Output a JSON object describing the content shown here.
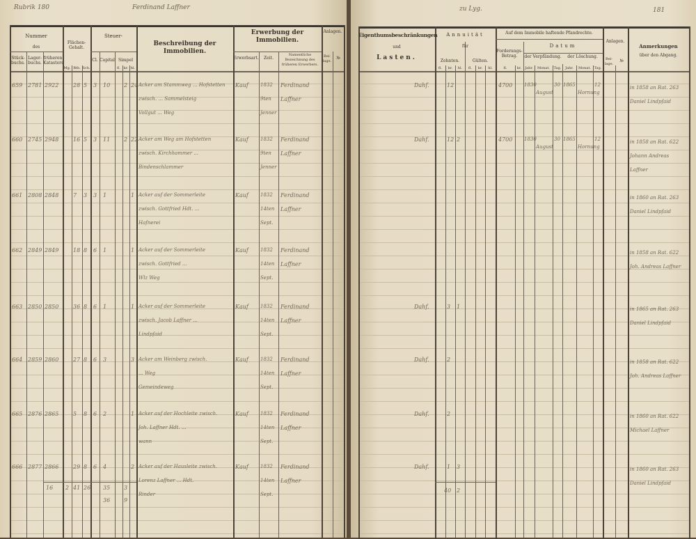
{
  "running_head": {
    "left_folio": "Rubrik 180",
    "left_name": "Ferdinand Laffner",
    "right_place": "zu Lyg.",
    "right_folio": "181"
  },
  "left_headers": {
    "nummer": "Nummer",
    "des": "des",
    "stueck": "Stück-buchs.",
    "lager": "Lager-buchs.",
    "frueher": "früheren Katasters",
    "flaechen": "Flächen-Gehalt.",
    "flaechen_sub": [
      "Mg.",
      "Rth.",
      "Sch."
    ],
    "steuer": "Steuer-",
    "cl": "Cl.",
    "capital": "Capital",
    "simpel": "Simpel",
    "simpel_sub": [
      "fl.",
      "kr.",
      "hl."
    ],
    "beschreibung": "Beschreibung der Immobilien.",
    "erwerbung": "Erwerbung der Immobilien.",
    "erwerbsart": "Erwerbsart.",
    "zeit": "Zeit.",
    "name": "Namentliche Bezeichnung des früheren Erwerbers.",
    "anlagen": "Anlagen.",
    "beilage": "Bei-lage.",
    "nr": "№"
  },
  "right_headers": {
    "eigenthum": "Eigenthumsbeschränkungen",
    "und": "und",
    "lasten": "Lasten.",
    "annuitaet": "Annuität",
    "fuer": "für",
    "zehnten": "Zehnten.",
    "guelten": "Gülten.",
    "sub": [
      "fl.",
      "kr.",
      "hl."
    ],
    "pfand": "Auf dem Immobile haftende Pfandrechte.",
    "forderung": "Forderungs-Betrag.",
    "ford_sub": [
      "fl.",
      "kr."
    ],
    "datum": "Datum",
    "verpf": "der Verpfändung.",
    "loesch": "der Löschung.",
    "dsub": [
      "Jahr.",
      "Monat.",
      "Tag."
    ],
    "anlagen": "Anlagen.",
    "beilage": "Bei-lage.",
    "nr": "№",
    "anmerkungen": "Anmerkungen",
    "abgang": "über den Abgang."
  },
  "rows": [
    {
      "nr": "659",
      "stueck": "2781",
      "lager": "2922",
      "fl": [
        "",
        "28",
        "5"
      ],
      "cl": "3",
      "cap": "10",
      "simp": [
        "",
        "2",
        "24"
      ],
      "desc": [
        "Acker am Stammweg ... Hofstetten",
        "zwisch. ... Sammelsteig",
        "Vollgut ... Weg"
      ],
      "art": "Kauf",
      "zeit": [
        "1832",
        "9ten",
        "Jenner"
      ],
      "name": [
        "Ferdinand",
        "Laffner"
      ],
      "last": "Dahf.",
      "zeh": [
        "",
        "12",
        ""
      ],
      "ford": "4700",
      "vj": "1830",
      "vm": "August",
      "vt": "30",
      "lj": "1865",
      "lm": "Hornung",
      "lt": "12",
      "anm": [
        "in 1858 an Rat. 263",
        "Daniel Lindpfaid"
      ]
    },
    {
      "nr": "660",
      "stueck": "2745",
      "lager": "2948",
      "fl": [
        "",
        "16",
        "5"
      ],
      "cl": "3",
      "cap": "11",
      "simp": [
        "",
        "2",
        "22"
      ],
      "desc": [
        "Acker am Weg am Hofstetten",
        "zwisch. Kirchhammer ...",
        "Bindenschlammer"
      ],
      "art": "Kauf",
      "zeit": [
        "1832",
        "9ten",
        "Jenner"
      ],
      "name": [
        "Ferdinand",
        "Laffner"
      ],
      "last": "Dahf.",
      "zeh": [
        "",
        "12",
        "2"
      ],
      "ford": "4700",
      "vj": "1830",
      "vm": "August",
      "vt": "30",
      "lj": "1865",
      "lm": "Hornung",
      "lt": "12",
      "anm": [
        "in 1858 an Rat. 622",
        "Johann Andreas",
        "Laffner"
      ]
    },
    {
      "nr": "661",
      "stueck": "2808",
      "lager": "2848",
      "fl": [
        "",
        "7",
        "3"
      ],
      "cl": "3",
      "cap": "1",
      "simp": [
        "",
        "",
        "1"
      ],
      "desc": [
        "Acker auf der Sommerleite",
        "zwisch. Gottfried Hdt. ...",
        "Hafnerei"
      ],
      "art": "Kauf",
      "zeit": [
        "1832",
        "14ten",
        "Sept."
      ],
      "name": [
        "Ferdinand",
        "Laffner"
      ],
      "last": "",
      "zeh": [
        "",
        "",
        ""
      ],
      "ford": "",
      "vj": "",
      "vm": "",
      "vt": "",
      "lj": "",
      "lm": "",
      "lt": "",
      "anm": [
        "in 1860 an Rat. 263",
        "Daniel Lindpfaid"
      ]
    },
    {
      "nr": "662",
      "stueck": "2849",
      "lager": "2849",
      "fl": [
        "",
        "18",
        "8"
      ],
      "cl": "6",
      "cap": "1",
      "simp": [
        "",
        "",
        "1"
      ],
      "desc": [
        "Acker auf der Sommerleite",
        "zwisch. Gottfried ...",
        "Wlz Weg"
      ],
      "art": "Kauf",
      "zeit": [
        "1832",
        "14ten",
        "Sept."
      ],
      "name": [
        "Ferdinand",
        "Laffner"
      ],
      "last": "",
      "zeh": [
        "",
        "",
        ""
      ],
      "ford": "",
      "vj": "",
      "vm": "",
      "vt": "",
      "lj": "",
      "lm": "",
      "lt": "",
      "anm": [
        "in 1858 an Rat. 622",
        "Joh. Andreas Laffner"
      ]
    },
    {
      "nr": "663",
      "stueck": "2850",
      "lager": "2850",
      "fl": [
        "",
        "36",
        "8"
      ],
      "cl": "6",
      "cap": "1",
      "simp": [
        "",
        "",
        "1"
      ],
      "desc": [
        "Acker auf der Sommerleite",
        "zwisch. Jacob Laffner ...",
        "Lindpfaid"
      ],
      "art": "Kauf",
      "zeit": [
        "1832",
        "14ten",
        "Sept."
      ],
      "name": [
        "Ferdinand",
        "Laffner"
      ],
      "last": "Dahf.",
      "zeh": [
        "",
        "3",
        "1"
      ],
      "ford": "",
      "vj": "",
      "vm": "",
      "vt": "",
      "lj": "",
      "lm": "",
      "lt": "",
      "anm": [
        "in 1865 an Rat. 263",
        "Daniel Lindpfaid"
      ]
    },
    {
      "nr": "664",
      "stueck": "2859",
      "lager": "2860",
      "fl": [
        "",
        "27",
        "8"
      ],
      "cl": "6",
      "cap": "3",
      "simp": [
        "",
        "",
        "3"
      ],
      "desc": [
        "Acker am Weinberg zwisch.",
        "... Weg",
        "Gemeindeweg"
      ],
      "art": "Kauf",
      "zeit": [
        "1832",
        "14ten",
        "Sept."
      ],
      "name": [
        "Ferdinand",
        "Laffner"
      ],
      "last": "Dahf.",
      "zeh": [
        "",
        "2",
        ""
      ],
      "ford": "",
      "vj": "",
      "vm": "",
      "vt": "",
      "lj": "",
      "lm": "",
      "lt": "",
      "anm": [
        "in 1858 an Rat. 622",
        "Joh. Andreas Laffner"
      ]
    },
    {
      "nr": "665",
      "stueck": "2876",
      "lager": "2865",
      "fl": [
        "",
        "5",
        "8"
      ],
      "cl": "6",
      "cap": "2",
      "simp": [
        "",
        "",
        "1"
      ],
      "desc": [
        "Acker auf der Hochleite zwisch.",
        "Joh. Laffner Hdt. ...",
        "wann"
      ],
      "art": "Kauf",
      "zeit": [
        "1832",
        "14ten",
        "Sept."
      ],
      "name": [
        "Ferdinand",
        "Laffner"
      ],
      "last": "Dahf.",
      "zeh": [
        "",
        "2",
        ""
      ],
      "ford": "",
      "vj": "",
      "vm": "",
      "vt": "",
      "lj": "",
      "lm": "",
      "lt": "",
      "anm": [
        "in 1860 an Rat. 622",
        "Michael Laffner"
      ]
    },
    {
      "nr": "666",
      "stueck": "2877",
      "lager": "2866",
      "fl": [
        "",
        "29",
        "8"
      ],
      "cl": "6",
      "cap": "4",
      "simp": [
        "",
        "",
        "2"
      ],
      "desc": [
        "Acker auf der Hausleite zwisch.",
        "Lorenz Laffner ... Hdt.",
        "Rinder"
      ],
      "art": "Kauf",
      "zeit": [
        "1832",
        "14ten",
        "Sept."
      ],
      "name": [
        "Ferdinand",
        "Laffner"
      ],
      "last": "Dahf.",
      "zeh": [
        "",
        "1",
        "3"
      ],
      "ford": "",
      "vj": "",
      "vm": "",
      "vt": "",
      "lj": "",
      "lm": "",
      "lt": "",
      "anm": [
        "in 1860 an Rat. 263",
        "Daniel Lindpfaid"
      ]
    }
  ],
  "totals": {
    "frueher": "16",
    "fl": [
      "2",
      "41",
      "26"
    ],
    "cap": [
      "35",
      "36"
    ],
    "simp": [
      "3",
      "9"
    ],
    "zeh": [
      "40",
      "2"
    ]
  }
}
